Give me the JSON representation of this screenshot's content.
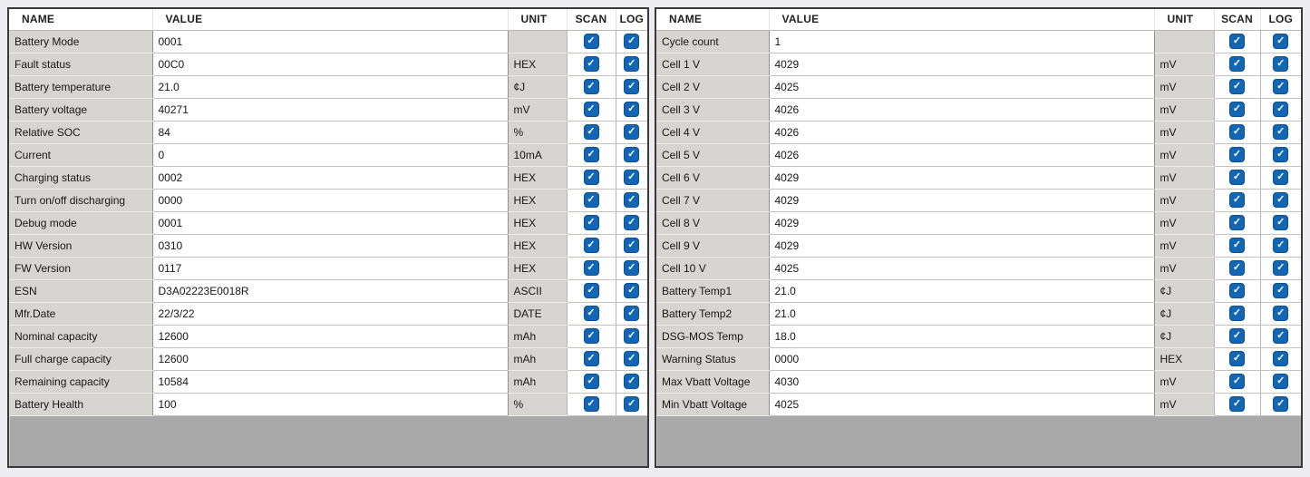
{
  "colors": {
    "checkbox_blue": "#1266b3",
    "name_cell_gray": "#d6d5d2",
    "empty_area_gray": "#a9a9a9",
    "panel_border": "#3a3a3a"
  },
  "table_headers": {
    "name": "NAME",
    "value": "VALUE",
    "unit": "UNIT",
    "scan": "SCAN",
    "log": "LOG"
  },
  "panels": [
    {
      "id": "battery-parameters",
      "rows": [
        {
          "name": "Battery Mode",
          "value": "0001",
          "unit": "",
          "scan": true,
          "log": true
        },
        {
          "name": "Fault status",
          "value": "00C0",
          "unit": "HEX",
          "scan": true,
          "log": true
        },
        {
          "name": "Battery temperature",
          "value": "21.0",
          "unit": "¢J",
          "scan": true,
          "log": true
        },
        {
          "name": "Battery voltage",
          "value": "40271",
          "unit": "mV",
          "scan": true,
          "log": true
        },
        {
          "name": "Relative SOC",
          "value": "84",
          "unit": "%",
          "scan": true,
          "log": true
        },
        {
          "name": "Current",
          "value": "0",
          "unit": "10mA",
          "scan": true,
          "log": true
        },
        {
          "name": "Charging status",
          "value": "0002",
          "unit": "HEX",
          "scan": true,
          "log": true
        },
        {
          "name": "Turn on/off discharging",
          "value": "0000",
          "unit": "HEX",
          "scan": true,
          "log": true
        },
        {
          "name": "Debug mode",
          "value": "0001",
          "unit": "HEX",
          "scan": true,
          "log": true
        },
        {
          "name": "HW Version",
          "value": "0310",
          "unit": "HEX",
          "scan": true,
          "log": true
        },
        {
          "name": "FW Version",
          "value": "0117",
          "unit": "HEX",
          "scan": true,
          "log": true
        },
        {
          "name": "ESN",
          "value": "D3A02223E0018R",
          "unit": "ASCII",
          "scan": true,
          "log": true
        },
        {
          "name": "Mfr.Date",
          "value": "22/3/22",
          "unit": "DATE",
          "scan": true,
          "log": true
        },
        {
          "name": "Nominal capacity",
          "value": "12600",
          "unit": "mAh",
          "scan": true,
          "log": true
        },
        {
          "name": "Full charge capacity",
          "value": "12600",
          "unit": "mAh",
          "scan": true,
          "log": true
        },
        {
          "name": "Remaining capacity",
          "value": "10584",
          "unit": "mAh",
          "scan": true,
          "log": true
        },
        {
          "name": "Battery Health",
          "value": "100",
          "unit": "%",
          "scan": true,
          "log": true
        }
      ]
    },
    {
      "id": "cell-measurements",
      "rows": [
        {
          "name": "Cycle count",
          "value": "1",
          "unit": "",
          "scan": true,
          "log": true
        },
        {
          "name": "Cell 1 V",
          "value": "4029",
          "unit": "mV",
          "scan": true,
          "log": true
        },
        {
          "name": "Cell 2 V",
          "value": "4025",
          "unit": "mV",
          "scan": true,
          "log": true
        },
        {
          "name": "Cell 3 V",
          "value": "4026",
          "unit": "mV",
          "scan": true,
          "log": true
        },
        {
          "name": "Cell 4 V",
          "value": "4026",
          "unit": "mV",
          "scan": true,
          "log": true
        },
        {
          "name": "Cell 5 V",
          "value": "4026",
          "unit": "mV",
          "scan": true,
          "log": true
        },
        {
          "name": "Cell 6 V",
          "value": "4029",
          "unit": "mV",
          "scan": true,
          "log": true
        },
        {
          "name": "Cell 7 V",
          "value": "4029",
          "unit": "mV",
          "scan": true,
          "log": true
        },
        {
          "name": "Cell 8 V",
          "value": "4029",
          "unit": "mV",
          "scan": true,
          "log": true
        },
        {
          "name": "Cell 9 V",
          "value": "4029",
          "unit": "mV",
          "scan": true,
          "log": true
        },
        {
          "name": "Cell 10 V",
          "value": "4025",
          "unit": "mV",
          "scan": true,
          "log": true
        },
        {
          "name": "Battery Temp1",
          "value": "21.0",
          "unit": "¢J",
          "scan": true,
          "log": true
        },
        {
          "name": "Battery Temp2",
          "value": "21.0",
          "unit": "¢J",
          "scan": true,
          "log": true
        },
        {
          "name": "DSG-MOS Temp",
          "value": "18.0",
          "unit": "¢J",
          "scan": true,
          "log": true
        },
        {
          "name": "Warning Status",
          "value": "0000",
          "unit": "HEX",
          "scan": true,
          "log": true
        },
        {
          "name": "Max Vbatt Voltage",
          "value": "4030",
          "unit": "mV",
          "scan": true,
          "log": true
        },
        {
          "name": "Min Vbatt Voltage",
          "value": "4025",
          "unit": "mV",
          "scan": true,
          "log": true
        }
      ]
    }
  ]
}
